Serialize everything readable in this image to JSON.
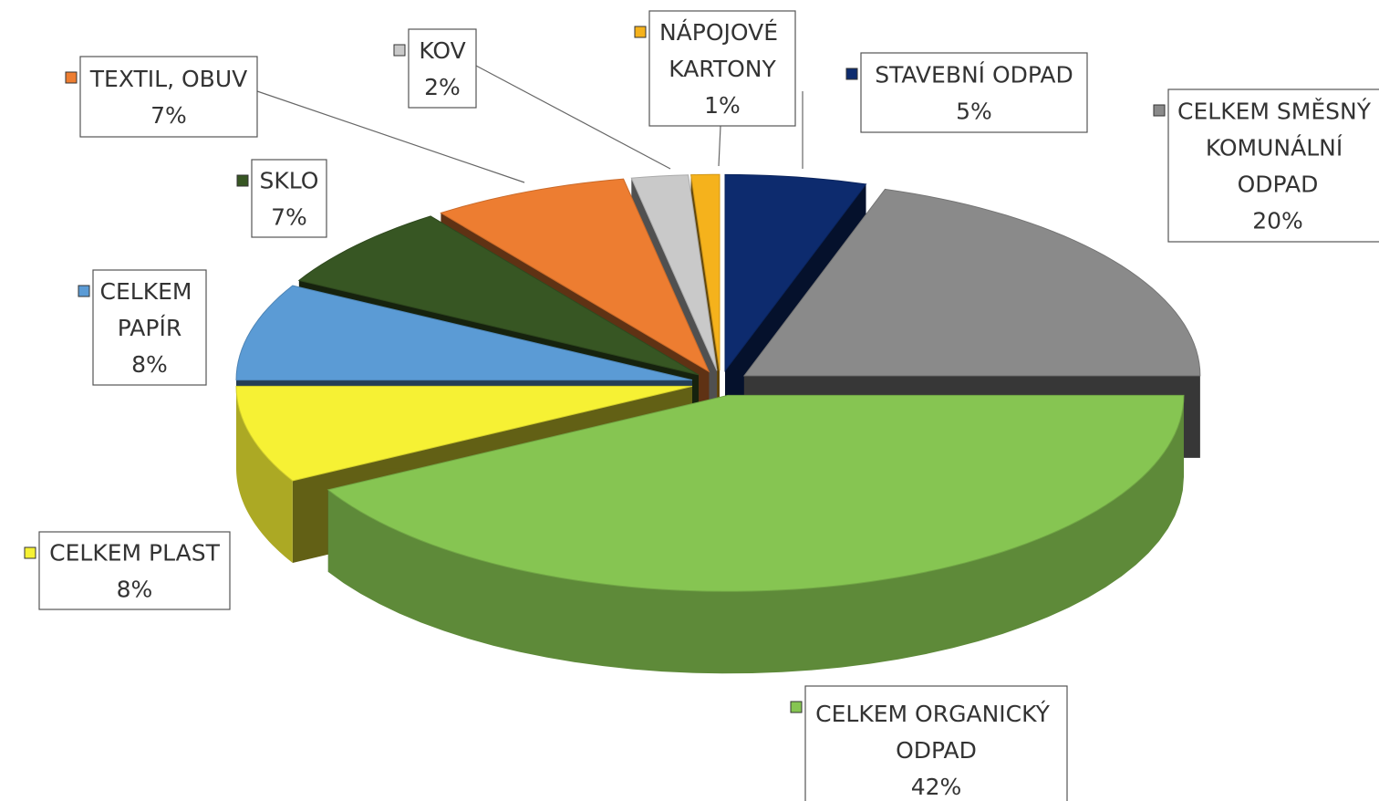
{
  "chart_data": {
    "type": "pie3d",
    "categories": [
      "STAVEBNÍ ODPAD",
      "CELKEM SMĚSNÝ KOMUNÁLNÍ ODPAD",
      "CELKEM ORGANICKÝ ODPAD",
      "CELKEM PLAST",
      "CELKEM PAPÍR",
      "SKLO",
      "TEXTIL, OBUV",
      "KOV",
      "NÁPOJOVÉ KARTONY"
    ],
    "values": [
      5,
      20,
      42,
      8,
      8,
      7,
      7,
      2,
      1
    ],
    "value_labels": [
      "5%",
      "20%",
      "42%",
      "8%",
      "8%",
      "7%",
      "7%",
      "2%",
      "1%"
    ],
    "colors": [
      "#0d2b6e",
      "#8a8a8a",
      "#86c552",
      "#f6f134",
      "#5b9bd5",
      "#375623",
      "#ed7d31",
      "#c9c9c9",
      "#f5b21c"
    ]
  }
}
